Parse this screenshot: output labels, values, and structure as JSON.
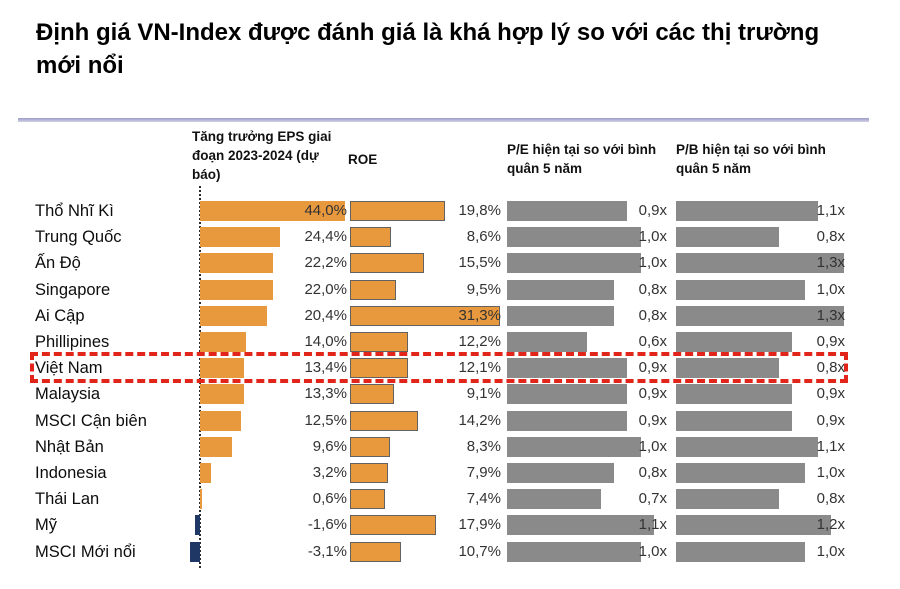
{
  "chart_data": {
    "type": "bar",
    "orientation": "horizontal",
    "title": "Định giá VN-Index được đánh giá là khá hợp lý so với các thị trường mới nổi",
    "categories": [
      "Thổ Nhĩ Kì",
      "Trung Quốc",
      "Ấn Độ",
      "Singapore",
      "Ai Cập",
      "Phillipines",
      "Việt Nam",
      "Malaysia",
      "MSCI Cận biên",
      "Nhật Bản",
      "Indonesia",
      "Thái Lan",
      "Mỹ",
      "MSCI Mới nổi"
    ],
    "highlighted_category": "Việt Nam",
    "columns": [
      {
        "key": "eps",
        "header": "Tăng trưởng EPS giai đoạn 2023-2024 (dự báo)",
        "unit": "%"
      },
      {
        "key": "roe",
        "header": "ROE",
        "unit": "%"
      },
      {
        "key": "pe",
        "header": "P/E hiện tại so với bình quân 5 năm",
        "unit": "x"
      },
      {
        "key": "pb",
        "header": "P/B hiện tại so với bình quân 5 năm",
        "unit": "x"
      }
    ],
    "series": [
      {
        "key": "eps",
        "name": "Tăng trưởng EPS giai đoạn 2023-2024 (dự báo)",
        "values": [
          44.0,
          24.4,
          22.2,
          22.0,
          20.4,
          14.0,
          13.4,
          13.3,
          12.5,
          9.6,
          3.2,
          0.6,
          -1.6,
          -3.1
        ],
        "labels": [
          "44,0%",
          "24,4%",
          "22,2%",
          "22,0%",
          "20,4%",
          "14,0%",
          "13,4%",
          "13,3%",
          "12,5%",
          "9,6%",
          "3,2%",
          "0,6%",
          "-1,6%",
          "-3,1%"
        ]
      },
      {
        "key": "roe",
        "name": "ROE",
        "values": [
          19.8,
          8.6,
          15.5,
          9.5,
          31.3,
          12.2,
          12.1,
          9.1,
          14.2,
          8.3,
          7.9,
          7.4,
          17.9,
          10.7
        ],
        "labels": [
          "19,8%",
          "8,6%",
          "15,5%",
          "9,5%",
          "31,3%",
          "12,2%",
          "12,1%",
          "9,1%",
          "14,2%",
          "8,3%",
          "7,9%",
          "7,4%",
          "17,9%",
          "10,7%"
        ]
      },
      {
        "key": "pe",
        "name": "P/E hiện tại so với bình quân 5 năm",
        "values": [
          0.9,
          1.0,
          1.0,
          0.8,
          0.8,
          0.6,
          0.9,
          0.9,
          0.9,
          1.0,
          0.8,
          0.7,
          1.1,
          1.0
        ],
        "labels": [
          "0,9x",
          "1,0x",
          "1,0x",
          "0,8x",
          "0,8x",
          "0,6x",
          "0,9x",
          "0,9x",
          "0,9x",
          "1,0x",
          "0,8x",
          "0,7x",
          "1,1x",
          "1,0x"
        ]
      },
      {
        "key": "pb",
        "name": "P/B hiện tại so với bình quân 5 năm",
        "values": [
          1.1,
          0.8,
          1.3,
          1.0,
          1.3,
          0.9,
          0.8,
          0.9,
          0.9,
          1.1,
          1.0,
          0.8,
          1.2,
          1.0
        ],
        "labels": [
          "1,1x",
          "0,8x",
          "1,3x",
          "1,0x",
          "1,3x",
          "0,9x",
          "0,8x",
          "0,9x",
          "0,9x",
          "1,1x",
          "1,0x",
          "0,8x",
          "1,2x",
          "1,0x"
        ]
      }
    ],
    "colors": {
      "bar_positive": "#E8993E",
      "bar_negative": "#1E3765",
      "bar_comparison": "#8A8A8A",
      "highlight_border": "#E2251B",
      "axis_line": "#2B2B2B",
      "separator": "#9B9BC8"
    }
  }
}
